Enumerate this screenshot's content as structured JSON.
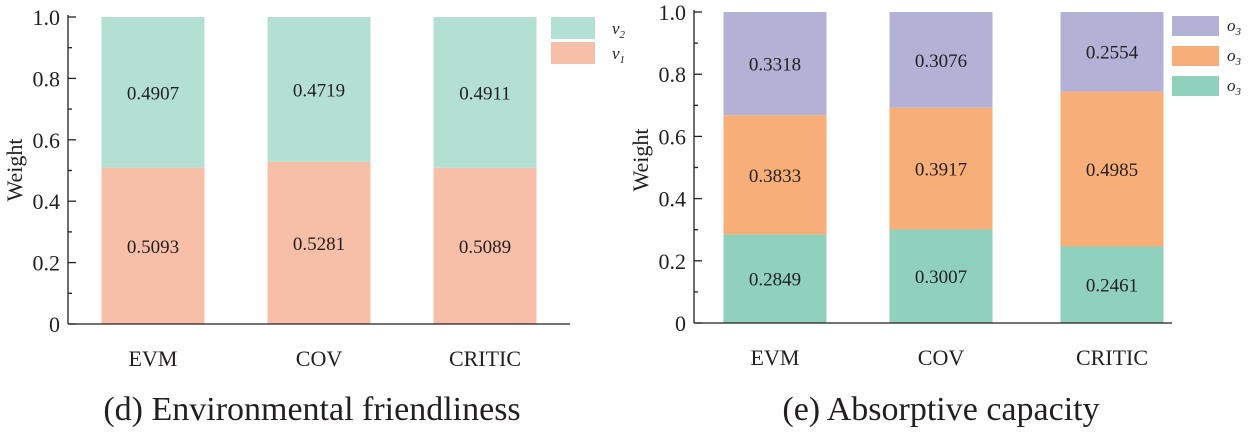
{
  "chart_data": [
    {
      "type": "bar",
      "stacked": true,
      "caption": "(d) Environmental friendliness",
      "ylabel": "Weight",
      "ylim": [
        0,
        1.0
      ],
      "yticks": [
        "0",
        "0.2",
        "0.4",
        "0.6",
        "0.8",
        "1.0"
      ],
      "categories": [
        "EVM",
        "COV",
        "CRITIC"
      ],
      "series": [
        {
          "name": "v",
          "sub": "1",
          "color": "#f8bfa8",
          "values": [
            0.5093,
            0.5281,
            0.5089
          ],
          "labels": [
            "0.5093",
            "0.5281",
            "0.5089"
          ]
        },
        {
          "name": "v",
          "sub": "2",
          "color": "#b3e0d3",
          "values": [
            0.4907,
            0.4719,
            0.4911
          ],
          "labels": [
            "0.4907",
            "0.4719",
            "0.4911"
          ]
        }
      ],
      "legend_order": [
        1,
        0
      ],
      "legend_position": "top-right"
    },
    {
      "type": "bar",
      "stacked": true,
      "caption": "(e) Absorptive capacity",
      "ylabel": "Weight",
      "ylim": [
        0,
        1.0
      ],
      "yticks": [
        "0",
        "0.2",
        "0.4",
        "0.6",
        "0.8",
        "1.0"
      ],
      "categories": [
        "EVM",
        "COV",
        "CRITIC"
      ],
      "series": [
        {
          "name": "o",
          "sub": "3",
          "color": "#8fd1bd",
          "values": [
            0.2849,
            0.3007,
            0.2461
          ],
          "labels": [
            "0.2849",
            "0.3007",
            "0.2461"
          ]
        },
        {
          "name": "o",
          "sub": "3",
          "color": "#f8ae78",
          "values": [
            0.3833,
            0.3917,
            0.4985
          ],
          "labels": [
            "0.3833",
            "0.3917",
            "0.4985"
          ]
        },
        {
          "name": "o",
          "sub": "3",
          "color": "#b3b1d6",
          "values": [
            0.3318,
            0.3076,
            0.2554
          ],
          "labels": [
            "0.3318",
            "0.3076",
            "0.2554"
          ]
        }
      ],
      "legend_order": [
        2,
        1,
        0
      ],
      "legend_position": "top-right"
    }
  ]
}
